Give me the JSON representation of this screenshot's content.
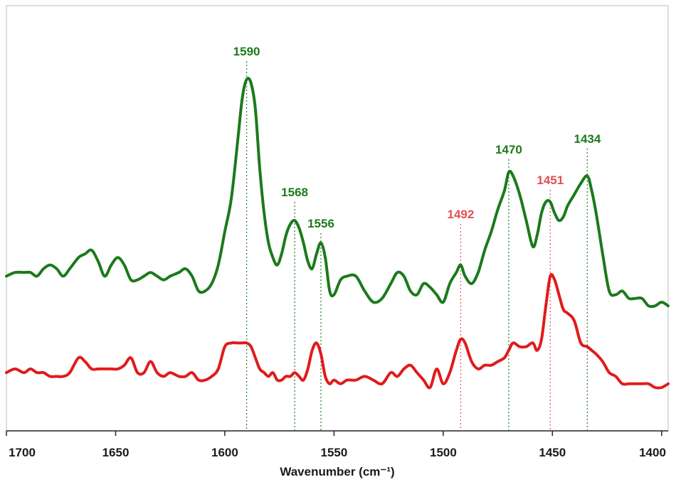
{
  "chart_data": {
    "type": "line",
    "title": "",
    "xlabel": "Wavenumber (cm⁻¹)",
    "ylabel": "",
    "xlim": [
      1700,
      1397
    ],
    "x_reversed": true,
    "ylim": [
      0,
      100
    ],
    "grid": false,
    "legend": "none",
    "x_ticks": [
      1700,
      1650,
      1600,
      1550,
      1500,
      1450,
      1400
    ],
    "x_tick_labels": [
      "1700",
      "1650",
      "1600",
      "1550",
      "1500",
      "1450",
      "1400"
    ],
    "series": [
      {
        "name": "green spectrum",
        "color": "#1b7a1b",
        "x": [
          1700,
          1696,
          1692,
          1689,
          1686,
          1683,
          1680,
          1677,
          1674,
          1671,
          1667,
          1664,
          1661,
          1658,
          1655,
          1652,
          1649,
          1646,
          1643,
          1640,
          1637,
          1634,
          1631,
          1628,
          1625,
          1621,
          1618,
          1615,
          1612,
          1609,
          1606,
          1603,
          1600,
          1597,
          1594,
          1592,
          1590,
          1588,
          1586,
          1584,
          1582,
          1580,
          1578,
          1576,
          1574,
          1572,
          1570,
          1568,
          1566,
          1564,
          1562,
          1560,
          1558,
          1556,
          1554,
          1552,
          1550,
          1547,
          1544,
          1540,
          1536,
          1532,
          1528,
          1524,
          1521,
          1518,
          1515,
          1512,
          1509,
          1506,
          1503,
          1500,
          1497,
          1494,
          1492,
          1490,
          1487,
          1484,
          1481,
          1478,
          1475,
          1472,
          1470,
          1468,
          1465,
          1462,
          1459,
          1457,
          1455,
          1453,
          1451,
          1449,
          1447,
          1445,
          1443,
          1440,
          1437,
          1434,
          1432,
          1430,
          1427,
          1424,
          1421,
          1418,
          1415,
          1412,
          1409,
          1406,
          1403,
          1400,
          1397
        ],
        "y": [
          39,
          40,
          40,
          40,
          39,
          41,
          42,
          41,
          39,
          41,
          44,
          45,
          46,
          43,
          39,
          42,
          44,
          42,
          38,
          38,
          39,
          40,
          39,
          38,
          39,
          40,
          41,
          39,
          35,
          35,
          37,
          42,
          51,
          60,
          76,
          87,
          92,
          91,
          84,
          68,
          56,
          48,
          44,
          42,
          45,
          50,
          53,
          54,
          52,
          48,
          43,
          41,
          45,
          48,
          44,
          35,
          34,
          38,
          39,
          39,
          35,
          32,
          33,
          37,
          40,
          39,
          35,
          34,
          37,
          36,
          34,
          32,
          37,
          40,
          42,
          39,
          37,
          40,
          46,
          51,
          57,
          62,
          67,
          66,
          61,
          54,
          47,
          50,
          56,
          59,
          59,
          56,
          54,
          55,
          58,
          61,
          64,
          66,
          62,
          56,
          45,
          35,
          34,
          35,
          33,
          33,
          33,
          31,
          31,
          32,
          31
        ]
      },
      {
        "name": "red spectrum",
        "color": "#e01b1b",
        "x": [
          1700,
          1696,
          1692,
          1689,
          1686,
          1683,
          1680,
          1677,
          1674,
          1671,
          1667,
          1664,
          1661,
          1658,
          1655,
          1652,
          1649,
          1646,
          1643,
          1640,
          1637,
          1634,
          1631,
          1628,
          1625,
          1621,
          1618,
          1615,
          1612,
          1609,
          1606,
          1603,
          1600,
          1597,
          1594,
          1592,
          1590,
          1588,
          1586,
          1584,
          1582,
          1580,
          1578,
          1576,
          1574,
          1572,
          1570,
          1568,
          1566,
          1564,
          1562,
          1560,
          1558,
          1556,
          1554,
          1552,
          1550,
          1547,
          1544,
          1540,
          1536,
          1532,
          1528,
          1524,
          1521,
          1518,
          1515,
          1512,
          1509,
          1506,
          1503,
          1500,
          1497,
          1494,
          1492,
          1490,
          1487,
          1484,
          1481,
          1478,
          1475,
          1472,
          1470,
          1468,
          1465,
          1462,
          1459,
          1457,
          1455,
          1453,
          1451,
          1449,
          1447,
          1445,
          1443,
          1440,
          1437,
          1434,
          1432,
          1430,
          1427,
          1424,
          1421,
          1418,
          1415,
          1412,
          1409,
          1406,
          1403,
          1400,
          1397
        ],
        "y": [
          13,
          14,
          13,
          14,
          13,
          13,
          12,
          12,
          12,
          13,
          17,
          16,
          14,
          14,
          14,
          14,
          14,
          15,
          17,
          13,
          13,
          16,
          13,
          12,
          13,
          12,
          12,
          13,
          11,
          11,
          12,
          14,
          20,
          21,
          21,
          21,
          21,
          20,
          17,
          14,
          13,
          12,
          13,
          11,
          11,
          12,
          12,
          13,
          12,
          11,
          14,
          19,
          21,
          18,
          12,
          10,
          11,
          10,
          11,
          11,
          12,
          11,
          10,
          13,
          12,
          14,
          15,
          13,
          11,
          9,
          14,
          10,
          13,
          19,
          22,
          21,
          16,
          14,
          15,
          15,
          16,
          17,
          19,
          21,
          20,
          20,
          21,
          19,
          22,
          31,
          39,
          38,
          34,
          30,
          29,
          27,
          21,
          20,
          19,
          18,
          16,
          13,
          12,
          10,
          10,
          10,
          10,
          10,
          9,
          9,
          10
        ]
      }
    ],
    "annotations": [
      {
        "label": "1590",
        "x": 1590,
        "color": "#1b7a1b"
      },
      {
        "label": "1568",
        "x": 1568,
        "color": "#1b7a1b"
      },
      {
        "label": "1556",
        "x": 1556,
        "color": "#1b7a1b"
      },
      {
        "label": "1492",
        "x": 1492,
        "color": "#e05050"
      },
      {
        "label": "1470",
        "x": 1470,
        "color": "#1b7a1b"
      },
      {
        "label": "1451",
        "x": 1451,
        "color": "#e05050"
      },
      {
        "label": "1434",
        "x": 1434,
        "color": "#1b7a1b"
      }
    ]
  }
}
